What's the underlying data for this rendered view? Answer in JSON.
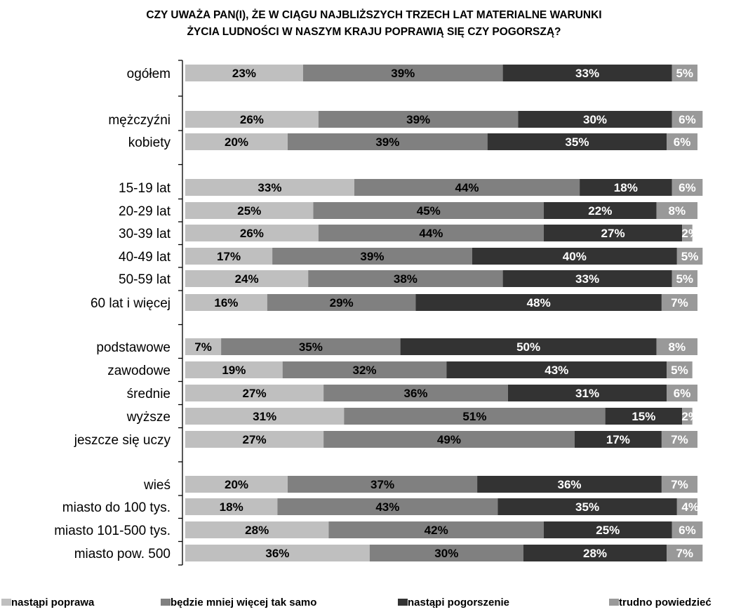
{
  "chart_data": {
    "type": "bar",
    "orientation": "horizontal",
    "stacked": true,
    "title_line1": "CZY UWAŻA PAN(I), ŻE W CIĄGU NAJBLIŻSZYCH TRZECH LAT MATERIALNE WARUNKI",
    "title_line2": "ŻYCIA LUDNOŚCI W NASZYM KRAJU POPRAWIĄ SIĘ CZY POGORSZĄ?",
    "xlim": [
      0,
      100
    ],
    "unit": "%",
    "grid": false,
    "legend_position": "bottom",
    "categories": [
      "ogółem",
      "mężczyźni",
      "kobiety",
      "15-19 lat",
      "20-29 lat",
      "30-39 lat",
      "40-49 lat",
      "50-59 lat",
      "60 lat i więcej",
      "podstawowe",
      "zawodowe",
      "średnie",
      "wyższe",
      "jeszcze się uczy",
      "wieś",
      "miasto do 100 tys.",
      "miasto 101-500 tys.",
      "miasto pow. 500"
    ],
    "groups": [
      [
        0
      ],
      [
        1,
        2
      ],
      [
        3,
        4,
        5,
        6,
        7,
        8
      ],
      [
        9,
        10,
        11,
        12,
        13
      ],
      [
        14,
        15,
        16,
        17
      ]
    ],
    "series": [
      {
        "name": "nastąpi poprawa",
        "color": "#bfbfbf",
        "label_color": "#000000",
        "values": [
          23,
          26,
          20,
          33,
          25,
          26,
          17,
          24,
          16,
          7,
          19,
          27,
          31,
          27,
          20,
          18,
          28,
          36
        ]
      },
      {
        "name": "będzie mniej więcej tak samo",
        "color": "#808080",
        "label_color": "#000000",
        "values": [
          39,
          39,
          39,
          44,
          45,
          44,
          39,
          38,
          29,
          35,
          32,
          36,
          51,
          49,
          37,
          43,
          42,
          30
        ]
      },
      {
        "name": "nastąpi pogorszenie",
        "color": "#333333",
        "label_color": "#ffffff",
        "values": [
          33,
          30,
          35,
          18,
          22,
          27,
          40,
          33,
          48,
          50,
          43,
          31,
          15,
          17,
          36,
          35,
          25,
          28
        ]
      },
      {
        "name": "trudno powiedzieć",
        "color": "#999999",
        "label_color": "#ffffff",
        "values": [
          5,
          6,
          6,
          6,
          8,
          2,
          5,
          5,
          7,
          8,
          5,
          6,
          2,
          7,
          7,
          4,
          6,
          7
        ]
      }
    ]
  }
}
